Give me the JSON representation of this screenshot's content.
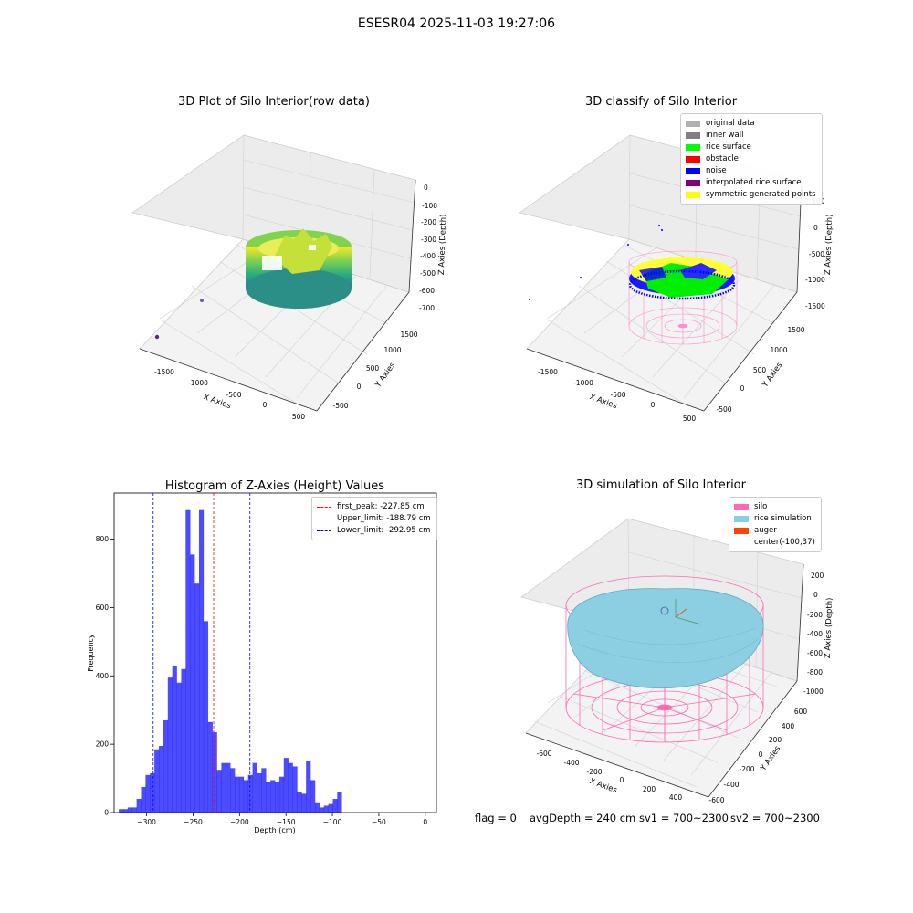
{
  "figure": {
    "suptitle": "ESESR04 2025-11-03 19:27:06",
    "footer": {
      "flag": "flag = 0",
      "avg_depth": "avgDepth = 240 cm",
      "sv1": "sv1 = 700~2300",
      "sv2": "sv2 = 700~2300"
    }
  },
  "panels": {
    "raw": {
      "title": "3D Plot of Silo Interior(row data)",
      "xlabel": "X Axies",
      "ylabel": "Y Axies",
      "zlabel": "Z Axies (Depth)",
      "xticks": [
        "-1500",
        "-1000",
        "-500",
        "0",
        "500"
      ],
      "yticks": [
        "-500",
        "0",
        "500",
        "1000",
        "1500"
      ],
      "zticks": [
        "0",
        "-100",
        "-200",
        "-300",
        "-400",
        "-500",
        "-600",
        "-700"
      ],
      "colormap": "viridis"
    },
    "classify": {
      "title": "3D classify of Silo Interior",
      "xlabel": "X Axies",
      "ylabel": "Y Axies",
      "zlabel": "Z Axies (Depth)",
      "xticks": [
        "-1500",
        "-1000",
        "-500",
        "0",
        "500"
      ],
      "yticks": [
        "-500",
        "0",
        "500",
        "1000",
        "1500"
      ],
      "zticks": [
        "500",
        "0",
        "-500",
        "-1000",
        "-1500"
      ],
      "legend": [
        {
          "label": "original data",
          "color": "#b0b0b0"
        },
        {
          "label": "inner wall",
          "color": "#808080"
        },
        {
          "label": "rice surface",
          "color": "#00ff00"
        },
        {
          "label": "obstacle",
          "color": "#ff0000"
        },
        {
          "label": "noise",
          "color": "#0000ff"
        },
        {
          "label": "interpolated rice surface",
          "color": "#800080"
        },
        {
          "label": "symmetric generated points",
          "color": "#ffff00"
        }
      ]
    },
    "simulation": {
      "title": "3D simulation of Silo Interior",
      "xlabel": "X Axies",
      "ylabel": "Y Axies",
      "zlabel": "Z Axies (Depth)",
      "xticks": [
        "-600",
        "-400",
        "-200",
        "0",
        "200",
        "400"
      ],
      "yticks": [
        "-600",
        "-400",
        "-200",
        "0",
        "200",
        "400",
        "600"
      ],
      "zticks": [
        "200",
        "0",
        "-200",
        "-400",
        "-600",
        "-800",
        "-1000"
      ],
      "legend": [
        {
          "label": "silo",
          "color": "#ff69b4"
        },
        {
          "label": "rice simulation",
          "color": "#87ceeb"
        },
        {
          "label": "auger",
          "color": "#ff4500"
        },
        {
          "label": "center(-100,37)",
          "color": ""
        }
      ]
    }
  },
  "chart_data": {
    "type": "bar",
    "title": "Histogram of Z-Axies (Height) Values",
    "xlabel": "Depth (cm)",
    "ylabel": "Frequency",
    "xlim": [
      -335,
      12
    ],
    "ylim": [
      0,
      935
    ],
    "xticks": [
      -300,
      -250,
      -200,
      -150,
      -100,
      -50,
      0
    ],
    "yticks": [
      0,
      200,
      400,
      600,
      800
    ],
    "bar_color": "#0000ff",
    "bar_opacity": 0.7,
    "bin_width": 4.8,
    "x_start": -330,
    "values": [
      10,
      10,
      15,
      15,
      40,
      75,
      110,
      115,
      185,
      195,
      270,
      395,
      430,
      380,
      420,
      885,
      755,
      670,
      885,
      560,
      265,
      235,
      125,
      145,
      145,
      130,
      105,
      105,
      95,
      110,
      145,
      115,
      130,
      90,
      95,
      90,
      105,
      160,
      145,
      135,
      60,
      55,
      150,
      95,
      30,
      15,
      20,
      25,
      40,
      60
    ],
    "lines": [
      {
        "label": "first_peak: -227.85 cm",
        "x": -227.85,
        "color": "#ff0000"
      },
      {
        "label": "Upper_limit: -188.79 cm",
        "x": -188.79,
        "color": "#0000ff"
      },
      {
        "label": "Lower_limit: -292.95 cm",
        "x": -292.95,
        "color": "#0000ff"
      }
    ],
    "legend_position": "upper right"
  }
}
